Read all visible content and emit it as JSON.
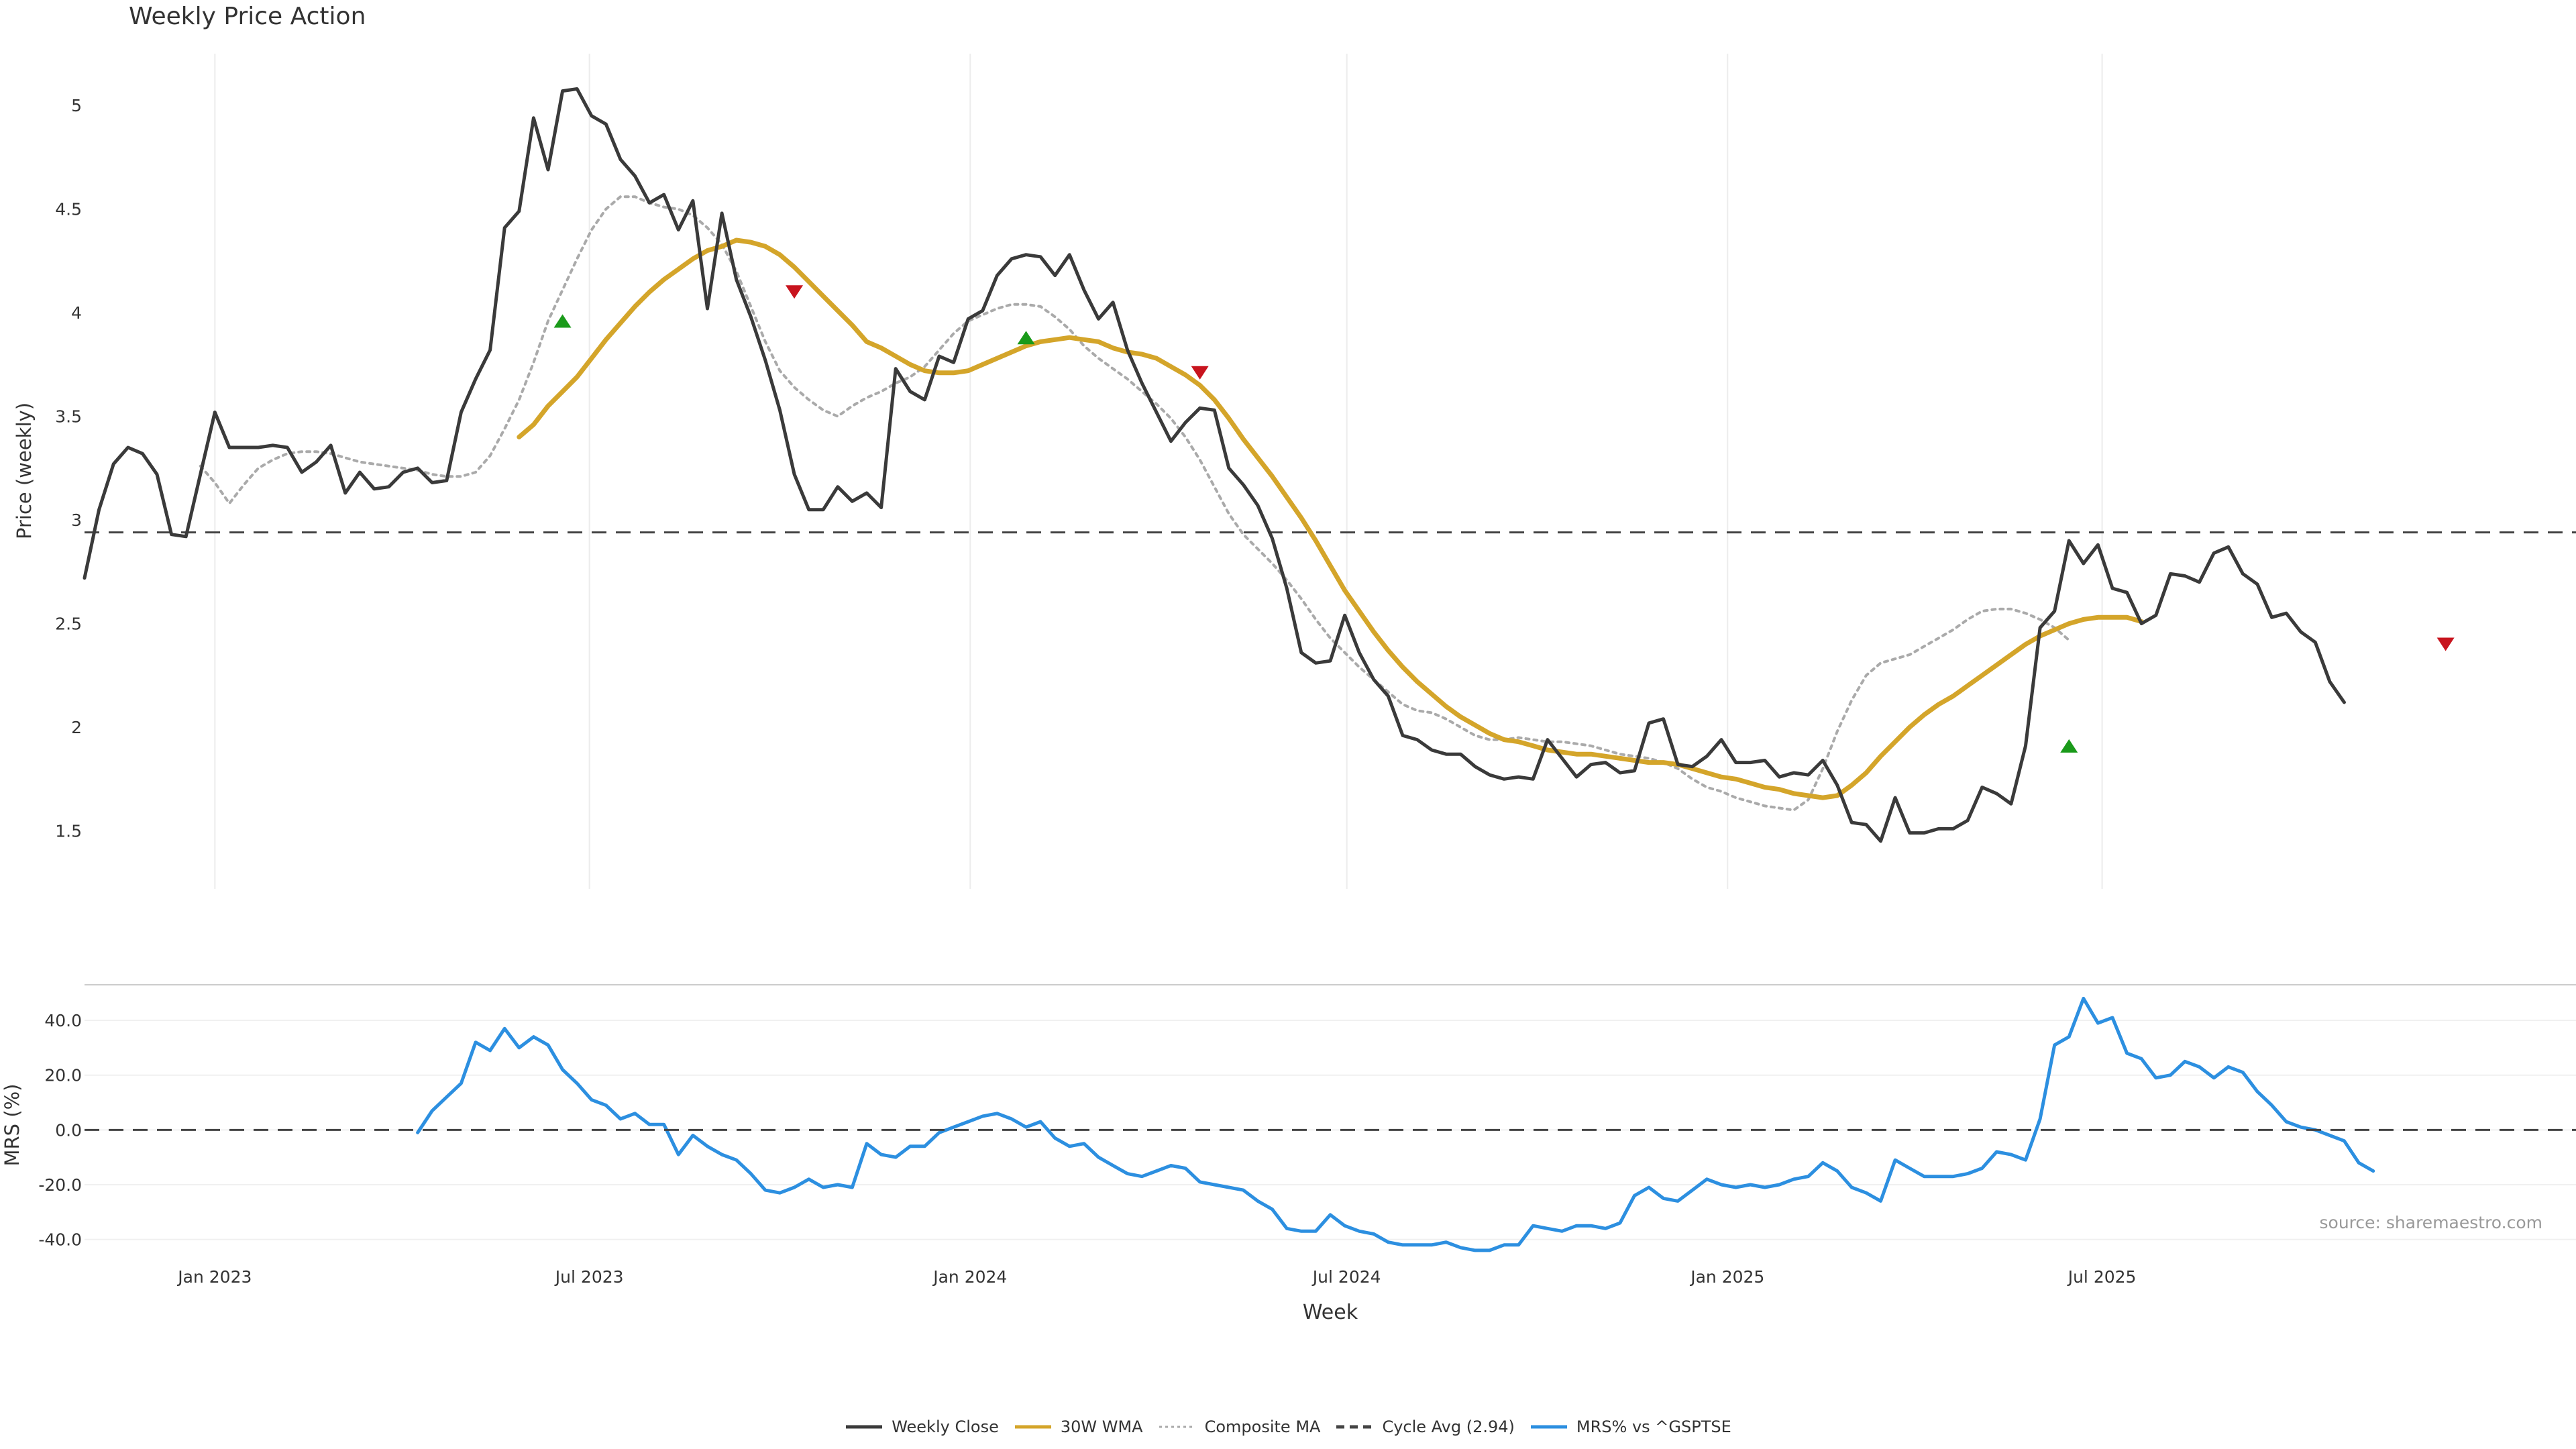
{
  "title": "Weekly Price Action",
  "source": "source: sharemaestro.com",
  "colors": {
    "close": "#3a3a3a",
    "wma": "#d4a52a",
    "composite": "#aaaaaa",
    "cycle": "#444444",
    "mrs": "#2c8fe0",
    "buy": "#1a9a1a",
    "sell": "#c8141e",
    "grid": "#ececec"
  },
  "chart_data": [
    {
      "type": "line",
      "title": "Weekly Price Action",
      "ylabel": "Price (weekly)",
      "xlabel": "Week",
      "x_ticks": [
        {
          "date": "2023-01-01",
          "label": "Jan 2023"
        },
        {
          "date": "2023-07-01",
          "label": "Jul 2023"
        },
        {
          "date": "2024-01-01",
          "label": "Jan 2024"
        },
        {
          "date": "2024-07-01",
          "label": "Jul 2024"
        },
        {
          "date": "2025-01-01",
          "label": "Jan 2025"
        },
        {
          "date": "2025-07-01",
          "label": "Jul 2025"
        }
      ],
      "x_range": [
        "2022-10-30",
        "2026-02-15"
      ],
      "y_ticks": [
        "1.5",
        "2",
        "2.5",
        "3",
        "3.5",
        "4",
        "4.5",
        "5"
      ],
      "ylim": [
        1.22,
        5.25
      ],
      "grid": "vertical",
      "series": [
        {
          "name": "Weekly Close",
          "start": "2022-10-30",
          "step_days": 7,
          "values": [
            2.72,
            3.05,
            3.27,
            3.35,
            3.32,
            3.22,
            2.93,
            2.92,
            3.22,
            3.52,
            3.35,
            3.35,
            3.35,
            3.36,
            3.35,
            3.23,
            3.28,
            3.36,
            3.13,
            3.23,
            3.15,
            3.16,
            3.23,
            3.25,
            3.18,
            3.19,
            3.52,
            3.68,
            3.82,
            4.41,
            4.49,
            4.94,
            4.69,
            5.07,
            5.08,
            4.95,
            4.91,
            4.74,
            4.66,
            4.53,
            4.57,
            4.4,
            4.54,
            4.02,
            4.48,
            4.16,
            3.98,
            3.77,
            3.53,
            3.22,
            3.05,
            3.05,
            3.16,
            3.09,
            3.13,
            3.06,
            3.73,
            3.62,
            3.58,
            3.79,
            3.76,
            3.97,
            4.01,
            4.18,
            4.26,
            4.28,
            4.27,
            4.18,
            4.28,
            4.11,
            3.97,
            4.05,
            3.82,
            3.66,
            3.52,
            3.38,
            3.47,
            3.54,
            3.53,
            3.25,
            3.17,
            3.07,
            2.91,
            2.67,
            2.36,
            2.31,
            2.32,
            2.54,
            2.36,
            2.23,
            2.15,
            1.96,
            1.94,
            1.89,
            1.87,
            1.87,
            1.81,
            1.77,
            1.75,
            1.76,
            1.75,
            1.94,
            1.85,
            1.76,
            1.82,
            1.83,
            1.78,
            1.79,
            2.02,
            2.04,
            1.82,
            1.81,
            1.86,
            1.94,
            1.83,
            1.83,
            1.84,
            1.76,
            1.78,
            1.77,
            1.84,
            1.72,
            1.54,
            1.53,
            1.45,
            1.66,
            1.49,
            1.49,
            1.51,
            1.51,
            1.55,
            1.71,
            1.68,
            1.63,
            1.91,
            2.48,
            2.56,
            2.9,
            2.79,
            2.88,
            2.67,
            2.65,
            2.5,
            2.54,
            2.74,
            2.73,
            2.7,
            2.84,
            2.87,
            2.74,
            2.69,
            2.53,
            2.55,
            2.46,
            2.41,
            2.22,
            2.12
          ]
        },
        {
          "name": "30W WMA",
          "start": "2023-05-28",
          "step_days": 7,
          "values": [
            3.4,
            3.46,
            3.55,
            3.62,
            3.69,
            3.78,
            3.87,
            3.95,
            4.03,
            4.1,
            4.16,
            4.21,
            4.26,
            4.3,
            4.32,
            4.35,
            4.34,
            4.32,
            4.28,
            4.22,
            4.15,
            4.08,
            4.01,
            3.94,
            3.86,
            3.83,
            3.79,
            3.75,
            3.72,
            3.71,
            3.71,
            3.72,
            3.75,
            3.78,
            3.81,
            3.84,
            3.86,
            3.87,
            3.88,
            3.87,
            3.86,
            3.83,
            3.81,
            3.8,
            3.78,
            3.74,
            3.7,
            3.65,
            3.58,
            3.49,
            3.39,
            3.3,
            3.21,
            3.11,
            3.01,
            2.9,
            2.78,
            2.66,
            2.56,
            2.46,
            2.37,
            2.29,
            2.22,
            2.16,
            2.1,
            2.05,
            2.01,
            1.97,
            1.94,
            1.93,
            1.91,
            1.89,
            1.88,
            1.87,
            1.87,
            1.86,
            1.85,
            1.84,
            1.83,
            1.83,
            1.82,
            1.8,
            1.78,
            1.76,
            1.75,
            1.73,
            1.71,
            1.7,
            1.68,
            1.67,
            1.66,
            1.67,
            1.72,
            1.78,
            1.86,
            1.93,
            2.0,
            2.06,
            2.11,
            2.15,
            2.2,
            2.25,
            2.3,
            2.35,
            2.4,
            2.44,
            2.47,
            2.5,
            2.52,
            2.53,
            2.53,
            2.53,
            2.51
          ]
        },
        {
          "name": "Composite MA",
          "start": "2022-12-25",
          "step_days": 7,
          "values": [
            3.26,
            3.18,
            3.08,
            3.17,
            3.25,
            3.29,
            3.32,
            3.33,
            3.33,
            3.32,
            3.3,
            3.28,
            3.27,
            3.26,
            3.25,
            3.24,
            3.22,
            3.21,
            3.21,
            3.23,
            3.31,
            3.44,
            3.58,
            3.76,
            3.96,
            4.11,
            4.26,
            4.4,
            4.5,
            4.56,
            4.56,
            4.53,
            4.51,
            4.5,
            4.47,
            4.41,
            4.33,
            4.2,
            4.03,
            3.86,
            3.72,
            3.64,
            3.58,
            3.53,
            3.5,
            3.55,
            3.59,
            3.62,
            3.66,
            3.69,
            3.74,
            3.82,
            3.9,
            3.96,
            3.99,
            4.02,
            4.04,
            4.04,
            4.03,
            3.98,
            3.92,
            3.84,
            3.78,
            3.73,
            3.68,
            3.62,
            3.56,
            3.49,
            3.4,
            3.29,
            3.16,
            3.03,
            2.93,
            2.86,
            2.79,
            2.71,
            2.62,
            2.52,
            2.43,
            2.36,
            2.29,
            2.23,
            2.17,
            2.11,
            2.08,
            2.07,
            2.04,
            2.0,
            1.96,
            1.94,
            1.94,
            1.95,
            1.94,
            1.93,
            1.93,
            1.92,
            1.91,
            1.89,
            1.87,
            1.86,
            1.85,
            1.83,
            1.8,
            1.75,
            1.71,
            1.69,
            1.66,
            1.64,
            1.62,
            1.61,
            1.6,
            1.65,
            1.8,
            1.98,
            2.13,
            2.25,
            2.31,
            2.33,
            2.35,
            2.39,
            2.43,
            2.47,
            2.52,
            2.56,
            2.57,
            2.57,
            2.55,
            2.52,
            2.48,
            2.42
          ]
        },
        {
          "name": "Cycle Avg (2.94)",
          "kind": "hline",
          "value": 2.94
        }
      ],
      "annotations": [
        {
          "type": "buy",
          "date": "2023-06-18",
          "value": 3.96
        },
        {
          "type": "sell",
          "date": "2023-10-08",
          "value": 4.1
        },
        {
          "type": "buy",
          "date": "2024-01-28",
          "value": 3.88
        },
        {
          "type": "sell",
          "date": "2024-04-21",
          "value": 3.71
        },
        {
          "type": "buy",
          "date": "2025-06-15",
          "value": 1.91
        },
        {
          "type": "sell",
          "date": "2025-12-14",
          "value": 2.4
        }
      ]
    },
    {
      "type": "line",
      "ylabel": "MRS (%)",
      "y_ticks": [
        "-40.0",
        "-20.0",
        "0.0",
        "20.0",
        "40.0"
      ],
      "ylim": [
        -45,
        53
      ],
      "series": [
        {
          "name": "MRS% vs ^GSPTSE",
          "start": "2023-04-09",
          "step_days": 7,
          "values": [
            -1,
            7,
            12,
            17,
            32,
            29,
            37,
            30,
            34,
            31,
            22,
            17,
            11,
            9,
            4,
            6,
            2,
            2,
            -9,
            -2,
            -6,
            -9,
            -11,
            -16,
            -22,
            -23,
            -21,
            -18,
            -21,
            -20,
            -21,
            -5,
            -9,
            -10,
            -6,
            -6,
            -1,
            1,
            3,
            5,
            6,
            4,
            1,
            3,
            -3,
            -6,
            -5,
            -10,
            -13,
            -16,
            -17,
            -15,
            -13,
            -14,
            -19,
            -20,
            -21,
            -22,
            -26,
            -29,
            -36,
            -37,
            -37,
            -31,
            -35,
            -37,
            -38,
            -41,
            -42,
            -42,
            -42,
            -41,
            -43,
            -44,
            -44,
            -42,
            -42,
            -35,
            -36,
            -37,
            -35,
            -35,
            -36,
            -34,
            -24,
            -21,
            -25,
            -26,
            -22,
            -18,
            -20,
            -21,
            -20,
            -21,
            -20,
            -18,
            -17,
            -12,
            -15,
            -21,
            -23,
            -26,
            -11,
            -14,
            -17,
            -17,
            -17,
            -16,
            -14,
            -8,
            -9,
            -11,
            4,
            31,
            34,
            48,
            39,
            41,
            28,
            26,
            19,
            20,
            25,
            23,
            19,
            23,
            21,
            14,
            9,
            3,
            1,
            0,
            -2,
            -4,
            -12,
            -15
          ]
        },
        {
          "name": "",
          "kind": "hline",
          "value": 0
        }
      ],
      "source": "source: sharemaestro.com"
    }
  ],
  "legend": [
    {
      "label": "Weekly Close",
      "style": "solid",
      "color": "#3a3a3a"
    },
    {
      "label": "30W WMA",
      "style": "solid",
      "color": "#d4a52a"
    },
    {
      "label": "Composite MA",
      "style": "dotted",
      "color": "#aaaaaa"
    },
    {
      "label": "Cycle Avg (2.94)",
      "style": "dashed",
      "color": "#444444"
    },
    {
      "label": "MRS% vs ^GSPTSE",
      "style": "solid",
      "color": "#2c8fe0"
    }
  ]
}
